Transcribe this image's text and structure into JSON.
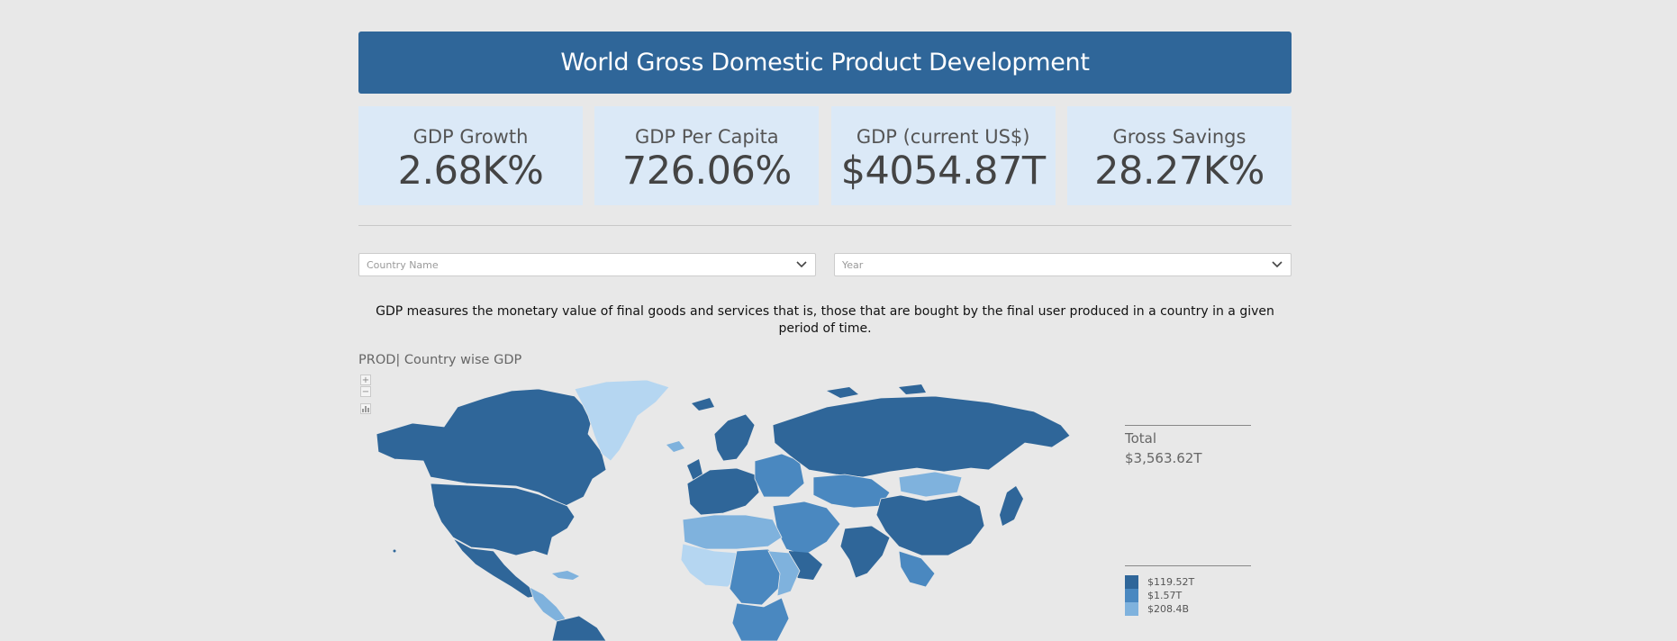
{
  "header": {
    "title": "World Gross Domestic Product Development"
  },
  "cards": [
    {
      "label": "GDP Growth",
      "value": "2.68K%"
    },
    {
      "label": "GDP Per Capita",
      "value": "726.06%"
    },
    {
      "label": "GDP (current US$)",
      "value": "$4054.87T"
    },
    {
      "label": "Gross Savings",
      "value": "28.27K%"
    }
  ],
  "filters": {
    "country": {
      "placeholder": "Country Name",
      "icon": "chevron-down-icon"
    },
    "year": {
      "placeholder": "Year",
      "icon": "chevron-down-icon"
    }
  },
  "description": "GDP measures the monetary value of final goods and services that is, those that are bought by the final user produced in a country in a given period of time.",
  "map": {
    "title": "PROD| Country wise GDP",
    "zoom_in": "+",
    "zoom_out": "−",
    "legend_total_label": "Total",
    "legend_total_value": "$3,563.62T",
    "scale": [
      {
        "label": "$119.52T",
        "color": "#2f6699"
      },
      {
        "label": "$1.57T",
        "color": "#4a88c0"
      },
      {
        "label": "$208.4B",
        "color": "#7fb2dd"
      }
    ],
    "colors": {
      "dark": "#2f6699",
      "mid": "#4a88c0",
      "light": "#7fb2dd",
      "pale": "#b5d6f1"
    }
  }
}
